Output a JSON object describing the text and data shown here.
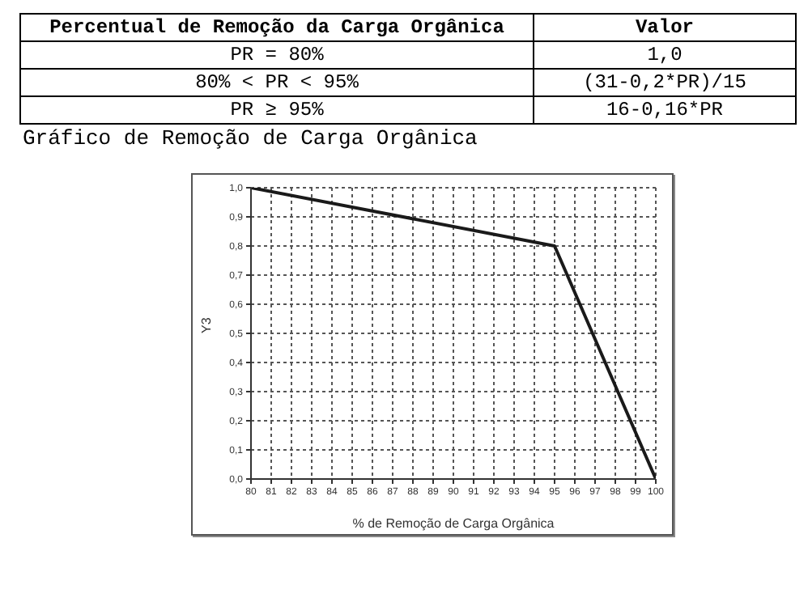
{
  "chart_data": {
    "type": "line",
    "title": "Gráfico de Remoção de Carga Orgânica",
    "xlabel": "% de Remoção de Carga Orgânica",
    "ylabel": "Y3",
    "annotations": [
      "Percentual de Remoção da Carga Orgânica",
      "Valor",
      "PR = 80%",
      "1,0",
      "80% < PR < 95%",
      "(31-0,2*PR)/15",
      "PR ≥ 95%",
      "16-0,16*PR"
    ],
    "x": [
      80,
      95,
      100
    ],
    "series": [
      {
        "color": "#1a1a1a",
        "values": [
          1.0,
          0.8,
          0.0
        ]
      }
    ],
    "xlim": [
      80,
      100
    ],
    "xticks": [
      80,
      81,
      82,
      83,
      84,
      85,
      86,
      87,
      88,
      89,
      90,
      91,
      92,
      93,
      94,
      95,
      96,
      97,
      98,
      99,
      100
    ],
    "ylim": [
      0,
      1
    ],
    "yticks": [
      {
        "value": 0,
        "label": "0,0"
      },
      {
        "value": 0.1,
        "label": "0,1"
      },
      {
        "value": 0.2,
        "label": "0,2"
      },
      {
        "value": 0.3,
        "label": "0,3"
      },
      {
        "value": 0.4,
        "label": "0,4"
      },
      {
        "value": 0.5,
        "label": "0,5"
      },
      {
        "value": 0.6,
        "label": "0,6"
      },
      {
        "value": 0.7,
        "label": "0,7"
      },
      {
        "value": 0.8,
        "label": "0,8"
      },
      {
        "value": 0.9,
        "label": "0,9"
      },
      {
        "value": 1,
        "label": "1,0"
      }
    ],
    "grid": true,
    "marker": "none",
    "line_style": "solid",
    "legend": false
  }
}
